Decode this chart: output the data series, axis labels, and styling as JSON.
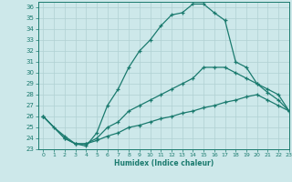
{
  "xlabel": "Humidex (Indice chaleur)",
  "xlim": [
    -0.5,
    23
  ],
  "ylim": [
    23,
    36.5
  ],
  "yticks": [
    23,
    24,
    25,
    26,
    27,
    28,
    29,
    30,
    31,
    32,
    33,
    34,
    35,
    36
  ],
  "xticks": [
    0,
    1,
    2,
    3,
    4,
    5,
    6,
    7,
    8,
    9,
    10,
    11,
    12,
    13,
    14,
    15,
    16,
    17,
    18,
    19,
    20,
    21,
    22,
    23
  ],
  "line_color": "#1a7a6e",
  "bg_color": "#cde8ea",
  "grid_color": "#b0d0d2",
  "line1_x": [
    0,
    1,
    2,
    3,
    4,
    5,
    6,
    7,
    8,
    9,
    10,
    11,
    12,
    13,
    14,
    15,
    16,
    17,
    18,
    19,
    20,
    21,
    22,
    23
  ],
  "line1_y": [
    26.0,
    25.0,
    24.2,
    23.5,
    23.3,
    24.5,
    27.0,
    28.5,
    30.5,
    32.0,
    33.0,
    34.3,
    35.3,
    35.5,
    36.3,
    36.3,
    35.5,
    34.8,
    31.0,
    30.5,
    29.0,
    28.2,
    27.5,
    26.5
  ],
  "line2_x": [
    0,
    2,
    3,
    4,
    5,
    6,
    7,
    8,
    9,
    10,
    11,
    12,
    13,
    14,
    15,
    16,
    17,
    18,
    19,
    20,
    21,
    22,
    23
  ],
  "line2_y": [
    26.0,
    24.0,
    23.5,
    23.5,
    24.0,
    25.0,
    25.5,
    26.5,
    27.0,
    27.5,
    28.0,
    28.5,
    29.0,
    29.5,
    30.5,
    30.5,
    30.5,
    30.0,
    29.5,
    29.0,
    28.5,
    28.0,
    26.5
  ],
  "line3_x": [
    0,
    2,
    3,
    4,
    5,
    6,
    7,
    8,
    9,
    10,
    11,
    12,
    13,
    14,
    15,
    16,
    17,
    18,
    19,
    20,
    21,
    22,
    23
  ],
  "line3_y": [
    26.0,
    24.0,
    23.5,
    23.5,
    23.8,
    24.2,
    24.5,
    25.0,
    25.2,
    25.5,
    25.8,
    26.0,
    26.3,
    26.5,
    26.8,
    27.0,
    27.3,
    27.5,
    27.8,
    28.0,
    27.5,
    27.0,
    26.5
  ]
}
